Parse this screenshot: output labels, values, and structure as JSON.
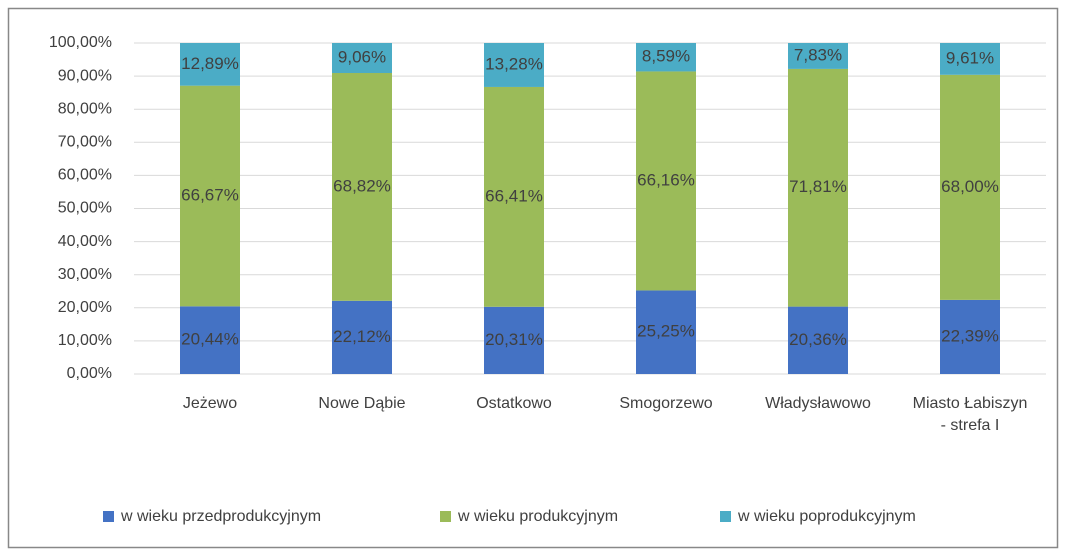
{
  "chart_data": {
    "type": "stacked_bar",
    "categories": [
      "Jeżewo",
      "Nowe Dąbie",
      "Ostatkowo",
      "Smogorzewo",
      "Władysławowo",
      "Miasto Łabiszyn - strefa I"
    ],
    "series": [
      {
        "name": "w wieku przedprodukcyjnym",
        "color": "#4472c4",
        "values": [
          20.44,
          22.12,
          20.31,
          25.25,
          20.36,
          22.39
        ],
        "value_labels": [
          "20,44%",
          "22,12%",
          "20,31%",
          "25,25%",
          "20,36%",
          "22,39%"
        ]
      },
      {
        "name": "w wieku produkcyjnym",
        "color": "#9bbb59",
        "values": [
          66.67,
          68.82,
          66.41,
          66.16,
          71.81,
          68.0
        ],
        "value_labels": [
          "66,67%",
          "68,82%",
          "66,41%",
          "66,16%",
          "71,81%",
          "68,00%"
        ]
      },
      {
        "name": "w wieku poprodukcyjnym",
        "color": "#4bacc6",
        "values": [
          12.89,
          9.06,
          13.28,
          8.59,
          7.83,
          9.61
        ],
        "value_labels": [
          "12,89%",
          "9,06%",
          "13,28%",
          "8,59%",
          "7,83%",
          "9,61%"
        ]
      }
    ],
    "ylim": [
      0,
      100
    ],
    "yticks": [
      {
        "value": 0,
        "label": "0,00%"
      },
      {
        "value": 10,
        "label": "10,00%"
      },
      {
        "value": 20,
        "label": "20,00%"
      },
      {
        "value": 30,
        "label": "30,00%"
      },
      {
        "value": 40,
        "label": "40,00%"
      },
      {
        "value": 50,
        "label": "50,00%"
      },
      {
        "value": 60,
        "label": "60,00%"
      },
      {
        "value": 70,
        "label": "70,00%"
      },
      {
        "value": 80,
        "label": "80,00%"
      },
      {
        "value": 90,
        "label": "90,00%"
      },
      {
        "value": 100,
        "label": "100,00%"
      }
    ],
    "grid": true,
    "legend": "bottom"
  }
}
